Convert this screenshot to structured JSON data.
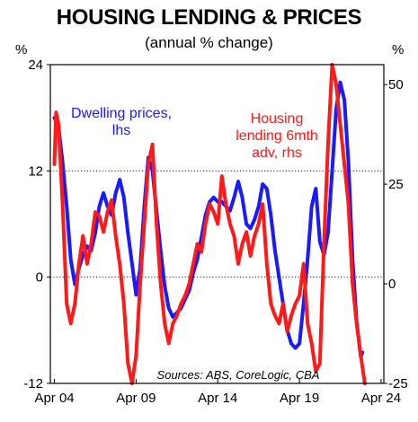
{
  "chart_data": {
    "type": "line",
    "title": "HOUSING LENDING & PRICES",
    "subtitle": "(annual % change)",
    "left_unit": "%",
    "right_unit": "%",
    "x_range": [
      "2004-01",
      "2024-06"
    ],
    "x_ticks": [
      "Apr 04",
      "Apr 09",
      "Apr 14",
      "Apr 19",
      "Apr 24"
    ],
    "x_tick_years": [
      2004.25,
      2009.25,
      2014.25,
      2019.25,
      2024.25
    ],
    "y_left": {
      "min": -12,
      "max": 24,
      "ticks": [
        -12,
        0,
        12,
        24
      ]
    },
    "y_right": {
      "min": -25,
      "max": 55,
      "ticks": [
        -25,
        0,
        25,
        50
      ]
    },
    "grid": "horizontal dotted",
    "source_note": "Sources: ABS, CoreLogic, CBA",
    "series": [
      {
        "name": "Dwelling prices, lhs",
        "label_lines": [
          "Dwelling prices,",
          "lhs"
        ],
        "axis": "left",
        "color": "#1a1aff",
        "points": [
          [
            2004.25,
            18.0
          ],
          [
            2004.5,
            17.0
          ],
          [
            2004.75,
            13.0
          ],
          [
            2005.0,
            8.0
          ],
          [
            2005.25,
            2.0
          ],
          [
            2005.5,
            -0.8
          ],
          [
            2005.75,
            1.0
          ],
          [
            2006.0,
            2.5
          ],
          [
            2006.25,
            3.5
          ],
          [
            2006.5,
            3.0
          ],
          [
            2006.75,
            5.0
          ],
          [
            2007.0,
            8.0
          ],
          [
            2007.25,
            9.5
          ],
          [
            2007.5,
            8.0
          ],
          [
            2007.75,
            7.0
          ],
          [
            2008.0,
            9.5
          ],
          [
            2008.25,
            11.0
          ],
          [
            2008.5,
            9.0
          ],
          [
            2008.75,
            5.0
          ],
          [
            2009.0,
            1.5
          ],
          [
            2009.25,
            -2.0
          ],
          [
            2009.5,
            1.0
          ],
          [
            2009.75,
            8.0
          ],
          [
            2010.0,
            13.5
          ],
          [
            2010.25,
            12.0
          ],
          [
            2010.5,
            7.5
          ],
          [
            2010.75,
            3.0
          ],
          [
            2011.0,
            -1.0
          ],
          [
            2011.25,
            -3.5
          ],
          [
            2011.5,
            -4.5
          ],
          [
            2011.75,
            -4.0
          ],
          [
            2012.0,
            -3.5
          ],
          [
            2012.25,
            -2.5
          ],
          [
            2012.5,
            -1.5
          ],
          [
            2012.75,
            0.5
          ],
          [
            2013.0,
            2.0
          ],
          [
            2013.25,
            4.5
          ],
          [
            2013.5,
            7.0
          ],
          [
            2013.75,
            8.5
          ],
          [
            2014.0,
            9.0
          ],
          [
            2014.25,
            8.5
          ],
          [
            2014.5,
            8.5
          ],
          [
            2014.75,
            8.0
          ],
          [
            2015.0,
            7.5
          ],
          [
            2015.25,
            9.0
          ],
          [
            2015.5,
            10.8
          ],
          [
            2015.75,
            9.0
          ],
          [
            2016.0,
            6.0
          ],
          [
            2016.25,
            5.5
          ],
          [
            2016.5,
            6.5
          ],
          [
            2016.75,
            8.0
          ],
          [
            2017.0,
            10.5
          ],
          [
            2017.25,
            10.0
          ],
          [
            2017.5,
            7.0
          ],
          [
            2017.75,
            3.0
          ],
          [
            2018.0,
            0.0
          ],
          [
            2018.25,
            -3.0
          ],
          [
            2018.5,
            -6.0
          ],
          [
            2018.75,
            -7.5
          ],
          [
            2019.0,
            -8.0
          ],
          [
            2019.25,
            -7.5
          ],
          [
            2019.5,
            -3.0
          ],
          [
            2019.75,
            2.0
          ],
          [
            2020.0,
            8.0
          ],
          [
            2020.25,
            10.0
          ],
          [
            2020.5,
            4.0
          ],
          [
            2020.75,
            2.5
          ],
          [
            2021.0,
            5.0
          ],
          [
            2021.25,
            12.0
          ],
          [
            2021.5,
            19.0
          ],
          [
            2021.75,
            22.0
          ],
          [
            2022.0,
            20.0
          ],
          [
            2022.25,
            13.0
          ],
          [
            2022.5,
            2.0
          ],
          [
            2022.75,
            -5.0
          ],
          [
            2023.0,
            -9.0
          ],
          [
            2023.1,
            -8.5
          ]
        ]
      },
      {
        "name": "Housing lending 6mth adv, rhs",
        "label_lines": [
          "Housing",
          "lending 6mth",
          "adv, rhs"
        ],
        "axis": "right",
        "color": "#ff1a1a",
        "points": [
          [
            2004.25,
            30.0
          ],
          [
            2004.35,
            43.0
          ],
          [
            2004.5,
            40.0
          ],
          [
            2004.75,
            20.0
          ],
          [
            2005.0,
            -5.0
          ],
          [
            2005.25,
            -10.0
          ],
          [
            2005.5,
            -5.0
          ],
          [
            2005.75,
            5.0
          ],
          [
            2006.0,
            12.0
          ],
          [
            2006.25,
            5.0
          ],
          [
            2006.5,
            10.0
          ],
          [
            2006.75,
            18.0
          ],
          [
            2007.0,
            17.0
          ],
          [
            2007.25,
            13.0
          ],
          [
            2007.5,
            18.0
          ],
          [
            2007.75,
            21.0
          ],
          [
            2008.0,
            12.0
          ],
          [
            2008.25,
            5.0
          ],
          [
            2008.5,
            -5.0
          ],
          [
            2008.75,
            -20.0
          ],
          [
            2009.0,
            -25.0
          ],
          [
            2009.25,
            -18.0
          ],
          [
            2009.5,
            0.0
          ],
          [
            2009.75,
            15.0
          ],
          [
            2010.0,
            30.0
          ],
          [
            2010.25,
            35.0
          ],
          [
            2010.5,
            15.0
          ],
          [
            2010.75,
            0.0
          ],
          [
            2011.0,
            -10.0
          ],
          [
            2011.25,
            -15.0
          ],
          [
            2011.5,
            -10.0
          ],
          [
            2011.75,
            -8.0
          ],
          [
            2012.0,
            -5.0
          ],
          [
            2012.25,
            -3.0
          ],
          [
            2012.5,
            0.0
          ],
          [
            2012.75,
            5.0
          ],
          [
            2013.0,
            10.0
          ],
          [
            2013.25,
            8.0
          ],
          [
            2013.5,
            15.0
          ],
          [
            2013.75,
            20.0
          ],
          [
            2014.0,
            18.0
          ],
          [
            2014.25,
            15.0
          ],
          [
            2014.5,
            27.0
          ],
          [
            2014.75,
            20.0
          ],
          [
            2015.0,
            15.0
          ],
          [
            2015.25,
            12.0
          ],
          [
            2015.5,
            5.0
          ],
          [
            2015.75,
            10.0
          ],
          [
            2016.0,
            13.0
          ],
          [
            2016.25,
            7.0
          ],
          [
            2016.5,
            12.0
          ],
          [
            2016.75,
            15.0
          ],
          [
            2017.0,
            20.0
          ],
          [
            2017.25,
            5.0
          ],
          [
            2017.5,
            -5.0
          ],
          [
            2017.75,
            -8.0
          ],
          [
            2018.0,
            -10.0
          ],
          [
            2018.25,
            -5.0
          ],
          [
            2018.5,
            -12.0
          ],
          [
            2018.75,
            -8.0
          ],
          [
            2019.0,
            -5.0
          ],
          [
            2019.25,
            -3.0
          ],
          [
            2019.5,
            5.0
          ],
          [
            2019.75,
            -10.0
          ],
          [
            2020.0,
            -15.0
          ],
          [
            2020.25,
            -22.0
          ],
          [
            2020.5,
            -20.0
          ],
          [
            2020.75,
            10.0
          ],
          [
            2021.0,
            35.0
          ],
          [
            2021.25,
            55.0
          ],
          [
            2021.5,
            50.0
          ],
          [
            2021.75,
            40.0
          ],
          [
            2022.0,
            30.0
          ],
          [
            2022.25,
            20.0
          ],
          [
            2022.5,
            0.0
          ],
          [
            2022.75,
            -10.0
          ],
          [
            2023.0,
            -18.0
          ],
          [
            2023.25,
            -25.0
          ]
        ]
      }
    ]
  }
}
